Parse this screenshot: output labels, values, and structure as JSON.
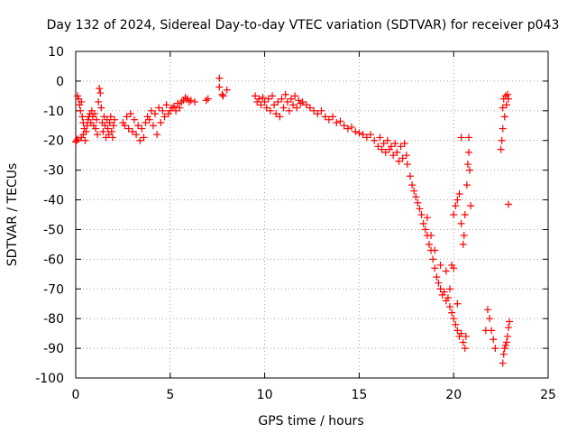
{
  "chart_data": {
    "type": "scatter",
    "title": "Day 132 of 2024, Sidereal Day-to-day VTEC variation (SDTVAR) for receiver p043",
    "xlabel": "GPS time / hours",
    "ylabel": "SDTVAR / TECUs",
    "xlim": [
      0,
      25
    ],
    "ylim": [
      -100,
      10
    ],
    "xticks": [
      0,
      5,
      10,
      15,
      20,
      25
    ],
    "yticks": [
      10,
      0,
      -10,
      -20,
      -30,
      -40,
      -50,
      -60,
      -70,
      -80,
      -90,
      -100
    ],
    "xtick_labels": [
      "0",
      "5",
      "10",
      "15",
      "20",
      "25"
    ],
    "ytick_labels": [
      "10",
      "0",
      "-10",
      "-20",
      "-30",
      "-40",
      "-50",
      "-60",
      "-70",
      "-80",
      "-90",
      "-100"
    ],
    "grid": true,
    "marker": "+",
    "color": "#ff0000",
    "series": [
      {
        "name": "SDTVAR",
        "points": [
          [
            0.0,
            -20.5
          ],
          [
            0.05,
            -20.0
          ],
          [
            0.1,
            -19.5
          ],
          [
            0.1,
            -5.0
          ],
          [
            0.15,
            -6.0
          ],
          [
            0.2,
            -8.0
          ],
          [
            0.25,
            -10.0
          ],
          [
            0.3,
            -7.0
          ],
          [
            0.3,
            -19.0
          ],
          [
            0.35,
            -12.0
          ],
          [
            0.4,
            -14.0
          ],
          [
            0.4,
            -18.0
          ],
          [
            0.45,
            -16.0
          ],
          [
            0.5,
            -20.0
          ],
          [
            0.55,
            -17.0
          ],
          [
            0.6,
            -15.0
          ],
          [
            0.65,
            -13.0
          ],
          [
            0.7,
            -12.0
          ],
          [
            0.75,
            -11.0
          ],
          [
            0.8,
            -14.0
          ],
          [
            0.85,
            -10.0
          ],
          [
            0.9,
            -12.0
          ],
          [
            0.95,
            -15.0
          ],
          [
            1.0,
            -11.0
          ],
          [
            1.05,
            -16.0
          ],
          [
            1.1,
            -13.0
          ],
          [
            1.15,
            -18.0
          ],
          [
            1.2,
            -7.0
          ],
          [
            1.25,
            -2.5
          ],
          [
            1.3,
            -4.0
          ],
          [
            1.35,
            -9.0
          ],
          [
            1.4,
            -14.0
          ],
          [
            1.45,
            -17.0
          ],
          [
            1.5,
            -12.0
          ],
          [
            1.55,
            -15.0
          ],
          [
            1.6,
            -19.0
          ],
          [
            1.65,
            -13.0
          ],
          [
            1.7,
            -16.0
          ],
          [
            1.75,
            -18.0
          ],
          [
            1.8,
            -14.0
          ],
          [
            1.85,
            -12.0
          ],
          [
            1.9,
            -17.0
          ],
          [
            1.95,
            -19.0
          ],
          [
            2.0,
            -15.0
          ],
          [
            2.05,
            -13.0
          ],
          [
            2.5,
            -14.0
          ],
          [
            2.6,
            -15.0
          ],
          [
            2.7,
            -12.0
          ],
          [
            2.8,
            -16.0
          ],
          [
            2.9,
            -11.0
          ],
          [
            3.0,
            -17.0
          ],
          [
            3.1,
            -13.0
          ],
          [
            3.2,
            -18.0
          ],
          [
            3.3,
            -15.0
          ],
          [
            3.4,
            -20.0
          ],
          [
            3.5,
            -16.0
          ],
          [
            3.6,
            -19.0
          ],
          [
            3.7,
            -14.0
          ],
          [
            3.8,
            -12.0
          ],
          [
            3.9,
            -13.0
          ],
          [
            4.0,
            -10.0
          ],
          [
            4.1,
            -15.0
          ],
          [
            4.2,
            -11.0
          ],
          [
            4.3,
            -18.0
          ],
          [
            4.4,
            -9.0
          ],
          [
            4.5,
            -14.0
          ],
          [
            4.6,
            -10.0
          ],
          [
            4.7,
            -12.0
          ],
          [
            4.8,
            -8.0
          ],
          [
            4.9,
            -11.0
          ],
          [
            5.0,
            -10.0
          ],
          [
            5.1,
            -9.0
          ],
          [
            5.2,
            -8.5
          ],
          [
            5.3,
            -10.0
          ],
          [
            5.4,
            -7.5
          ],
          [
            5.5,
            -9.0
          ],
          [
            5.6,
            -7.0
          ],
          [
            5.7,
            -6.5
          ],
          [
            5.8,
            -5.5
          ],
          [
            5.9,
            -6.0
          ],
          [
            6.0,
            -7.0
          ],
          [
            6.1,
            -6.5
          ],
          [
            6.3,
            -7.0
          ],
          [
            6.9,
            -6.5
          ],
          [
            7.0,
            -6.0
          ],
          [
            7.6,
            1.0
          ],
          [
            7.6,
            -2.0
          ],
          [
            7.75,
            -4.5
          ],
          [
            7.8,
            -5.0
          ],
          [
            8.0,
            -3.0
          ],
          [
            9.5,
            -5.0
          ],
          [
            9.6,
            -7.0
          ],
          [
            9.7,
            -6.0
          ],
          [
            9.8,
            -8.0
          ],
          [
            9.9,
            -5.5
          ],
          [
            10.0,
            -7.0
          ],
          [
            10.1,
            -9.0
          ],
          [
            10.2,
            -6.0
          ],
          [
            10.3,
            -10.0
          ],
          [
            10.4,
            -5.0
          ],
          [
            10.5,
            -8.0
          ],
          [
            10.6,
            -11.0
          ],
          [
            10.7,
            -7.0
          ],
          [
            10.8,
            -12.0
          ],
          [
            10.9,
            -6.0
          ],
          [
            11.0,
            -9.0
          ],
          [
            11.1,
            -4.5
          ],
          [
            11.2,
            -7.0
          ],
          [
            11.3,
            -10.0
          ],
          [
            11.4,
            -6.0
          ],
          [
            11.5,
            -8.0
          ],
          [
            11.6,
            -5.0
          ],
          [
            11.7,
            -9.0
          ],
          [
            11.8,
            -6.5
          ],
          [
            11.9,
            -7.5
          ],
          [
            12.0,
            -7.0
          ],
          [
            12.2,
            -8.0
          ],
          [
            12.4,
            -9.0
          ],
          [
            12.6,
            -10.0
          ],
          [
            12.8,
            -11.0
          ],
          [
            13.0,
            -10.0
          ],
          [
            13.2,
            -12.0
          ],
          [
            13.4,
            -13.0
          ],
          [
            13.6,
            -12.0
          ],
          [
            13.8,
            -14.0
          ],
          [
            14.0,
            -13.5
          ],
          [
            14.2,
            -15.0
          ],
          [
            14.4,
            -16.0
          ],
          [
            14.6,
            -15.5
          ],
          [
            14.8,
            -17.0
          ],
          [
            15.0,
            -17.5
          ],
          [
            15.2,
            -18.0
          ],
          [
            15.4,
            -19.0
          ],
          [
            15.6,
            -18.0
          ],
          [
            15.8,
            -20.0
          ],
          [
            16.0,
            -22.0
          ],
          [
            16.1,
            -19.0
          ],
          [
            16.2,
            -23.0
          ],
          [
            16.3,
            -21.0
          ],
          [
            16.4,
            -24.0
          ],
          [
            16.5,
            -20.0
          ],
          [
            16.6,
            -23.0
          ],
          [
            16.7,
            -22.0
          ],
          [
            16.8,
            -25.0
          ],
          [
            16.9,
            -21.0
          ],
          [
            17.0,
            -24.0
          ],
          [
            17.1,
            -27.0
          ],
          [
            17.2,
            -22.0
          ],
          [
            17.3,
            -26.0
          ],
          [
            17.4,
            -21.0
          ],
          [
            17.5,
            -25.0
          ],
          [
            17.55,
            -28.0
          ],
          [
            17.7,
            -32.0
          ],
          [
            17.8,
            -35.0
          ],
          [
            17.9,
            -37.0
          ],
          [
            18.0,
            -39.0
          ],
          [
            18.1,
            -41.0
          ],
          [
            18.2,
            -43.0
          ],
          [
            18.3,
            -45.0
          ],
          [
            18.4,
            -48.0
          ],
          [
            18.5,
            -50.0
          ],
          [
            18.6,
            -52.0
          ],
          [
            18.7,
            -55.0
          ],
          [
            18.8,
            -57.0
          ],
          [
            18.9,
            -60.0
          ],
          [
            19.0,
            -63.0
          ],
          [
            19.1,
            -66.0
          ],
          [
            19.2,
            -68.0
          ],
          [
            19.3,
            -70.0
          ],
          [
            19.4,
            -72.0
          ],
          [
            19.5,
            -71.0
          ],
          [
            19.6,
            -74.0
          ],
          [
            19.7,
            -73.0
          ],
          [
            19.8,
            -76.0
          ],
          [
            19.9,
            -78.0
          ],
          [
            20.0,
            -80.0
          ],
          [
            20.1,
            -82.0
          ],
          [
            20.2,
            -84.0
          ],
          [
            20.3,
            -86.0
          ],
          [
            20.4,
            -85.0
          ],
          [
            20.5,
            -88.0
          ],
          [
            20.6,
            -90.0
          ],
          [
            20.65,
            -86.0
          ],
          [
            18.6,
            -46.0
          ],
          [
            18.8,
            -52.0
          ],
          [
            19.0,
            -57.0
          ],
          [
            19.3,
            -62.0
          ],
          [
            19.6,
            -64.0
          ],
          [
            19.9,
            -62.0
          ],
          [
            20.0,
            -63.0
          ],
          [
            19.8,
            -70.0
          ],
          [
            20.2,
            -75.0
          ],
          [
            20.0,
            -45.0
          ],
          [
            20.1,
            -42.0
          ],
          [
            20.2,
            -40.0
          ],
          [
            20.3,
            -38.0
          ],
          [
            20.4,
            -48.0
          ],
          [
            20.5,
            -55.0
          ],
          [
            20.55,
            -52.0
          ],
          [
            20.6,
            -45.0
          ],
          [
            20.7,
            -35.0
          ],
          [
            20.75,
            -28.0
          ],
          [
            20.8,
            -24.0
          ],
          [
            20.8,
            -19.0
          ],
          [
            20.85,
            -30.0
          ],
          [
            20.9,
            -42.0
          ],
          [
            20.4,
            -19.0
          ],
          [
            21.8,
            -77.0
          ],
          [
            21.9,
            -80.0
          ],
          [
            22.0,
            -84.0
          ],
          [
            22.1,
            -87.0
          ],
          [
            22.2,
            -90.0
          ],
          [
            21.7,
            -84.0
          ],
          [
            22.5,
            -23.0
          ],
          [
            22.55,
            -20.0
          ],
          [
            22.6,
            -16.0
          ],
          [
            22.6,
            -9.0
          ],
          [
            22.65,
            -6.0
          ],
          [
            22.7,
            -12.0
          ],
          [
            22.75,
            -5.0
          ],
          [
            22.8,
            -8.0
          ],
          [
            22.85,
            -4.5
          ],
          [
            22.9,
            -6.0
          ],
          [
            22.9,
            -41.5
          ],
          [
            22.6,
            -95.0
          ],
          [
            22.65,
            -92.0
          ],
          [
            22.7,
            -90.0
          ],
          [
            22.75,
            -89.0
          ],
          [
            22.8,
            -88.0
          ],
          [
            22.85,
            -86.0
          ],
          [
            22.9,
            -83.0
          ],
          [
            22.95,
            -81.0
          ]
        ]
      }
    ]
  }
}
